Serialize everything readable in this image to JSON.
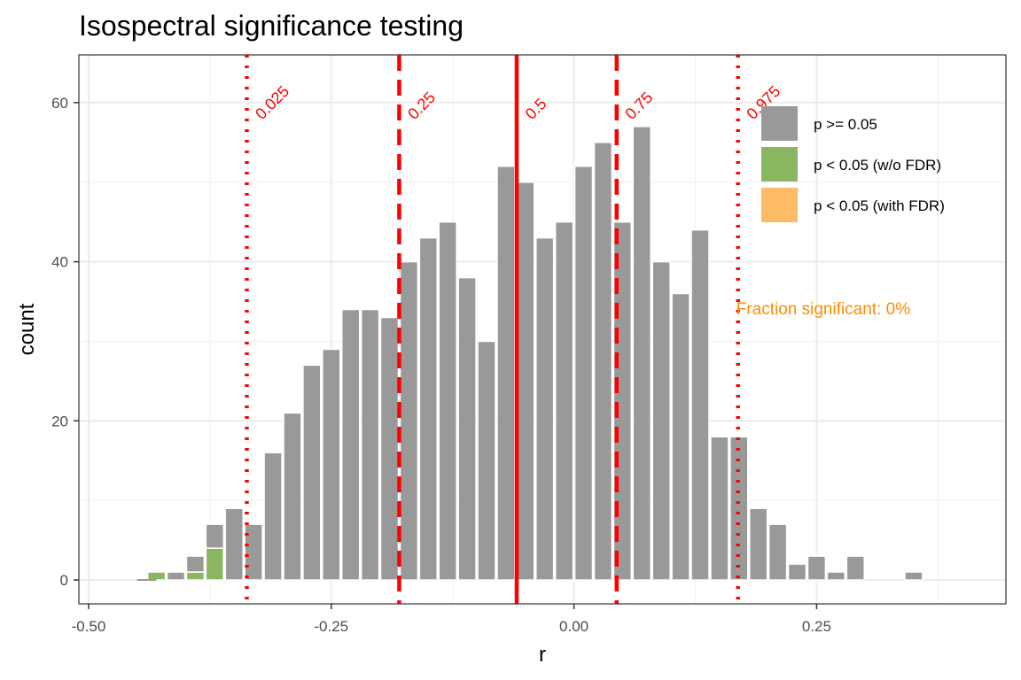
{
  "chart_data": {
    "type": "bar",
    "title": "Isospectral significance testing",
    "xlabel": "r",
    "ylabel": "count",
    "xlim": [
      -0.51,
      0.445
    ],
    "ylim": [
      -3,
      66
    ],
    "x_ticks": [
      -0.5,
      -0.25,
      0.0,
      0.25
    ],
    "x_tick_labels": [
      "-0.50",
      "-0.25",
      "0.00",
      "0.25"
    ],
    "y_ticks": [
      0,
      20,
      40,
      60
    ],
    "y_tick_labels": [
      "0",
      "20",
      "40",
      "60"
    ],
    "grid": true,
    "bin_width": 0.02,
    "series": [
      {
        "name": "p >= 0.05",
        "color": "#999999",
        "x": [
          -0.41,
          -0.39,
          -0.37,
          -0.35,
          -0.33,
          -0.31,
          -0.29,
          -0.27,
          -0.25,
          -0.23,
          -0.21,
          -0.19,
          -0.17,
          -0.15,
          -0.13,
          -0.11,
          -0.09,
          -0.07,
          -0.05,
          -0.03,
          -0.01,
          0.01,
          0.03,
          0.05,
          0.07,
          0.09,
          0.11,
          0.13,
          0.15,
          0.17,
          0.19,
          0.21,
          0.23,
          0.25,
          0.27,
          0.29,
          0.35
        ],
        "values": [
          1,
          2,
          3,
          9,
          7,
          16,
          21,
          27,
          29,
          34,
          34,
          33,
          40,
          43,
          45,
          38,
          30,
          52,
          50,
          43,
          45,
          52,
          55,
          45,
          57,
          40,
          36,
          44,
          18,
          18,
          9,
          7,
          2,
          3,
          1,
          3,
          1
        ]
      },
      {
        "name": "p < 0.05 (w/o FDR)",
        "color": "#8ab661",
        "x": [
          -0.43,
          -0.39,
          -0.37
        ],
        "values": [
          1,
          1,
          4
        ]
      },
      {
        "name": "p < 0.05 (with FDR)",
        "color": "#ffbb66",
        "x": [],
        "values": []
      }
    ],
    "quantile_lines": [
      {
        "label": "0.025",
        "x": -0.337,
        "style": "dotted"
      },
      {
        "label": "0.25",
        "x": -0.18,
        "style": "dashed"
      },
      {
        "label": "0.5",
        "x": -0.059,
        "style": "solid"
      },
      {
        "label": "0.75",
        "x": 0.044,
        "style": "dashed"
      },
      {
        "label": "0.975",
        "x": 0.169,
        "style": "dotted"
      }
    ],
    "line_color": "#ff0000",
    "annotation": {
      "text": "Fraction significant: 0%",
      "color": "#ff8c00"
    },
    "legend_position": "top-right"
  }
}
